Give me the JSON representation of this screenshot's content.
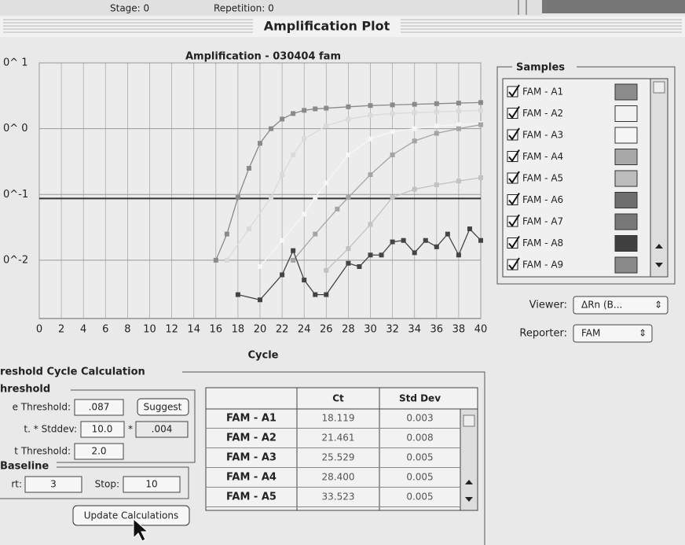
{
  "top_bar": {
    "stage": "Stage: 0",
    "repetition": "Repetition: 0"
  },
  "window_title": "Amplification Plot",
  "chart_data": {
    "type": "line",
    "title": "Amplification - 030404 fam",
    "x_label": "Cycle",
    "xlim": [
      0,
      40
    ],
    "xticks": [
      0,
      2,
      4,
      6,
      8,
      10,
      12,
      14,
      16,
      18,
      20,
      22,
      24,
      26,
      28,
      30,
      32,
      34,
      36,
      38,
      40
    ],
    "ylim": [
      0.0013,
      10
    ],
    "log_y": true,
    "yticks": [
      {
        "value": 10,
        "label": "0^ 1"
      },
      {
        "value": 1,
        "label": "0^ 0"
      },
      {
        "value": 0.1,
        "label": "0^-1"
      },
      {
        "value": 0.01,
        "label": "0^-2"
      }
    ],
    "grid": true,
    "threshold": 0.087,
    "series": [
      {
        "color": "#8a8a8a",
        "x": [
          16,
          17,
          18,
          19,
          20,
          21,
          22,
          23,
          24,
          25,
          26,
          28,
          30,
          32,
          34,
          36,
          38,
          40
        ],
        "values": [
          0.01,
          0.025,
          0.09,
          0.25,
          0.6,
          1.0,
          1.4,
          1.7,
          1.9,
          2.0,
          2.05,
          2.15,
          2.25,
          2.3,
          2.35,
          2.4,
          2.45,
          2.5
        ]
      },
      {
        "color": "#dadada",
        "x": [
          17,
          19,
          21,
          22,
          23,
          24,
          26,
          28,
          30,
          32,
          34,
          36,
          38,
          40
        ],
        "values": [
          0.01,
          0.03,
          0.09,
          0.2,
          0.4,
          0.7,
          1.1,
          1.4,
          1.6,
          1.7,
          1.75,
          1.8,
          1.85,
          1.9
        ]
      },
      {
        "color": "#f6f6f6",
        "x": [
          20,
          22,
          24,
          25,
          26,
          28,
          30,
          32,
          34,
          36,
          38,
          40
        ],
        "values": [
          0.008,
          0.02,
          0.05,
          0.09,
          0.15,
          0.4,
          0.7,
          0.9,
          1.0,
          1.1,
          1.15,
          1.2
        ]
      },
      {
        "color": "#a4a4a4",
        "x": [
          23,
          25,
          27,
          28,
          30,
          32,
          34,
          36,
          38,
          40
        ],
        "values": [
          0.01,
          0.025,
          0.06,
          0.09,
          0.2,
          0.4,
          0.65,
          0.85,
          1.0,
          1.15
        ]
      },
      {
        "color": "#c2c2c2",
        "x": [
          26,
          28,
          30,
          32,
          34,
          36,
          38,
          40
        ],
        "values": [
          0.007,
          0.015,
          0.035,
          0.09,
          0.12,
          0.14,
          0.16,
          0.18
        ]
      },
      {
        "color": "#444444",
        "x": [
          18,
          20,
          22,
          23,
          24,
          25,
          26,
          28,
          29,
          30,
          31,
          32,
          33,
          34,
          35,
          36,
          37,
          38,
          39,
          40
        ],
        "values": [
          0.003,
          0.0025,
          0.006,
          0.014,
          0.005,
          0.003,
          0.003,
          0.009,
          0.008,
          0.012,
          0.012,
          0.019,
          0.02,
          0.013,
          0.02,
          0.016,
          0.025,
          0.012,
          0.03,
          0.02
        ]
      }
    ]
  },
  "samples": {
    "title": "Samples",
    "items": [
      {
        "label": "FAM - A1",
        "color": "#8c8c8c"
      },
      {
        "label": "FAM - A2",
        "color": "#f2f2f2"
      },
      {
        "label": "FAM - A3",
        "color": "#f5f5f5"
      },
      {
        "label": "FAM - A4",
        "color": "#a8a8a8"
      },
      {
        "label": "FAM - A5",
        "color": "#bdbdbd"
      },
      {
        "label": "FAM - A6",
        "color": "#6e6e6e"
      },
      {
        "label": "FAM - A7",
        "color": "#787878"
      },
      {
        "label": "FAM - A8",
        "color": "#404040"
      },
      {
        "label": "FAM - A9",
        "color": "#8a8a8a"
      }
    ]
  },
  "viewer": {
    "label": "Viewer:",
    "value": "ΔRn (B..."
  },
  "reporter": {
    "label": "Reporter:",
    "value": "FAM"
  },
  "threshold_calc": {
    "title": "reshold Cycle Calculation",
    "threshold": {
      "title": "hreshold",
      "threshold_label": "e Threshold:",
      "threshold_value": ".087",
      "suggest_button": "Suggest",
      "stddev_label": "t. * Stddev:",
      "stddev_value": "10.0",
      "times": "*",
      "stddev_result": ".004",
      "ct_label": "t Threshold:",
      "ct_value": "2.0"
    },
    "baseline": {
      "title": "Baseline",
      "start_label": "rt:",
      "start_value": "3",
      "stop_label": "Stop:",
      "stop_value": "10"
    },
    "update_button": "Update Calculations"
  },
  "results_table": {
    "columns": [
      "Ct",
      "Std Dev"
    ],
    "rows": [
      [
        "FAM - A1",
        "18.119",
        "0.003"
      ],
      [
        "FAM - A2",
        "21.461",
        "0.008"
      ],
      [
        "FAM - A3",
        "25.529",
        "0.005"
      ],
      [
        "FAM - A4",
        "28.400",
        "0.005"
      ],
      [
        "FAM - A5",
        "33.523",
        "0.005"
      ]
    ]
  }
}
